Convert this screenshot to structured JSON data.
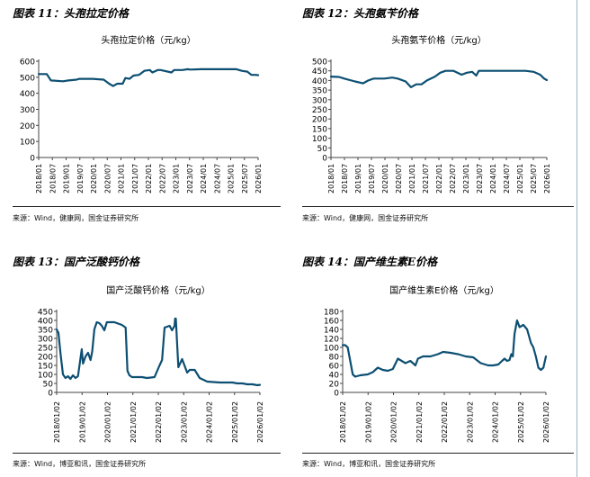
{
  "colors": {
    "line": "#0d4f72",
    "axis": "#444444",
    "divider": "#222222"
  },
  "chart_data": [
    {
      "type": "line",
      "figure_label": "图表 11：头孢拉定价格",
      "title": "头孢拉定价格（元/kg）",
      "source": "来源：Wind，健康网，国金证券研究所",
      "yticks": [
        0,
        100,
        200,
        300,
        400,
        500,
        600
      ],
      "ylim": [
        0,
        600
      ],
      "xticks": [
        "2018/01",
        "2018/07",
        "2019/01",
        "2019/07",
        "2020/01",
        "2020/07",
        "2021/01",
        "2021/07",
        "2022/01",
        "2022/07",
        "2023/01",
        "2023/07",
        "2024/01",
        "2024/07",
        "2025/01",
        "2025/07",
        "2026/01"
      ],
      "xlim": [
        2018.0,
        2026.1
      ],
      "series": [
        {
          "name": "头孢拉定价格",
          "x": [
            2018.0,
            2018.3,
            2018.45,
            2018.9,
            2019.1,
            2019.4,
            2019.5,
            2019.9,
            2020.0,
            2020.4,
            2020.6,
            2020.75,
            2020.9,
            2021.1,
            2021.2,
            2021.35,
            2021.5,
            2021.7,
            2021.9,
            2022.1,
            2022.2,
            2022.4,
            2022.5,
            2022.9,
            2023.0,
            2023.3,
            2023.5,
            2023.6,
            2024.0,
            2024.5,
            2025.0,
            2025.3,
            2025.5,
            2025.7,
            2025.85,
            2026.0,
            2026.1
          ],
          "y": [
            520,
            520,
            480,
            475,
            480,
            485,
            490,
            490,
            490,
            485,
            460,
            445,
            460,
            460,
            495,
            490,
            510,
            515,
            540,
            545,
            530,
            545,
            545,
            530,
            545,
            545,
            550,
            548,
            550,
            550,
            550,
            550,
            540,
            535,
            515,
            515,
            513
          ]
        }
      ]
    },
    {
      "type": "line",
      "figure_label": "图表 12：头孢氨苄价格",
      "title": "头孢氨苄价格（元/kg）",
      "source": "来源：Wind，健康网，国金证券研究所",
      "yticks": [
        0,
        50,
        100,
        150,
        200,
        250,
        300,
        350,
        400,
        450,
        500
      ],
      "ylim": [
        0,
        500
      ],
      "xticks": [
        "2018/01",
        "2018/07",
        "2019/01",
        "2019/07",
        "2020/01",
        "2020/07",
        "2021/01",
        "2021/07",
        "2022/01",
        "2022/07",
        "2023/01",
        "2023/07",
        "2024/01",
        "2024/07",
        "2025/01",
        "2025/07",
        "2026/01"
      ],
      "xlim": [
        2018.0,
        2026.1
      ],
      "series": [
        {
          "name": "头孢氨苄价格",
          "x": [
            2018.0,
            2018.3,
            2018.5,
            2018.9,
            2019.2,
            2019.4,
            2019.6,
            2020.0,
            2020.3,
            2020.5,
            2020.6,
            2020.8,
            2021.0,
            2021.2,
            2021.4,
            2021.6,
            2021.9,
            2022.1,
            2022.3,
            2022.6,
            2022.9,
            2023.1,
            2023.3,
            2023.45,
            2023.55,
            2024.0,
            2024.5,
            2025.0,
            2025.3,
            2025.6,
            2025.85,
            2026.0,
            2026.1
          ],
          "y": [
            420,
            418,
            410,
            395,
            385,
            400,
            410,
            410,
            415,
            410,
            405,
            395,
            365,
            380,
            380,
            400,
            420,
            440,
            450,
            450,
            430,
            440,
            445,
            425,
            450,
            450,
            450,
            450,
            450,
            445,
            430,
            410,
            402
          ]
        }
      ]
    },
    {
      "type": "line",
      "figure_label": "图表 13：国产泛酸钙价格",
      "title": "国产泛酸钙价格（元/kg）",
      "source": "来源：Wind，博亚和讯，国金证券研究所",
      "yticks": [
        0,
        50,
        100,
        150,
        200,
        250,
        300,
        350,
        400,
        450
      ],
      "ylim": [
        0,
        450
      ],
      "xticks": [
        "2018/01/02",
        "2019/01/02",
        "2020/01/02",
        "2021/01/02",
        "2022/01/02",
        "2023/01/02",
        "2024/01/02",
        "2025/01/02",
        "2026/01/02"
      ],
      "xlim": [
        2018.0,
        2026.1
      ],
      "series": [
        {
          "name": "国产泛酸钙价格",
          "x": [
            2018.0,
            2018.07,
            2018.15,
            2018.25,
            2018.35,
            2018.45,
            2018.55,
            2018.65,
            2018.75,
            2018.85,
            2019.0,
            2019.05,
            2019.15,
            2019.25,
            2019.35,
            2019.42,
            2019.5,
            2019.6,
            2019.7,
            2019.8,
            2019.9,
            2020.0,
            2020.3,
            2020.6,
            2020.75,
            2020.82,
            2020.9,
            2021.0,
            2021.4,
            2021.6,
            2021.9,
            2022.1,
            2022.2,
            2022.3,
            2022.5,
            2022.6,
            2022.7,
            2022.72,
            2022.75,
            2022.85,
            2023.0,
            2023.2,
            2023.3,
            2023.5,
            2023.7,
            2024.0,
            2024.5,
            2025.0,
            2025.2,
            2025.4,
            2025.6,
            2025.8,
            2026.0,
            2026.1
          ],
          "y": [
            350,
            330,
            220,
            100,
            80,
            90,
            75,
            95,
            80,
            90,
            240,
            160,
            200,
            220,
            180,
            230,
            350,
            390,
            385,
            370,
            345,
            390,
            390,
            375,
            360,
            120,
            95,
            85,
            85,
            80,
            85,
            150,
            180,
            360,
            370,
            345,
            370,
            410,
            410,
            140,
            185,
            110,
            125,
            125,
            80,
            60,
            55,
            55,
            50,
            50,
            45,
            45,
            40,
            42
          ]
        }
      ]
    },
    {
      "type": "line",
      "figure_label": "图表 14：国产维生素E价格",
      "title": "国产维生素E价格（元/kg）",
      "source": "来源：Wind，博亚和讯，国金证券研究所",
      "yticks": [
        0,
        20,
        40,
        60,
        80,
        100,
        120,
        140,
        160,
        180
      ],
      "ylim": [
        0,
        180
      ],
      "xticks": [
        "2018/01/02",
        "2019/01/02",
        "2020/01/02",
        "2021/01/02",
        "2022/01/02",
        "2023/01/02",
        "2024/01/02",
        "2025/01/02",
        "2026/01/02"
      ],
      "xlim": [
        2018.0,
        2026.1
      ],
      "series": [
        {
          "name": "国产维生素E价格",
          "x": [
            2018.0,
            2018.1,
            2018.2,
            2018.3,
            2018.4,
            2018.5,
            2018.7,
            2019.0,
            2019.2,
            2019.4,
            2019.6,
            2019.8,
            2020.0,
            2020.2,
            2020.35,
            2020.5,
            2020.7,
            2020.9,
            2021.0,
            2021.2,
            2021.5,
            2021.8,
            2022.0,
            2022.3,
            2022.6,
            2022.9,
            2023.2,
            2023.5,
            2023.8,
            2024.0,
            2024.2,
            2024.35,
            2024.45,
            2024.55,
            2024.65,
            2024.72,
            2024.78,
            2024.85,
            2024.95,
            2025.05,
            2025.2,
            2025.35,
            2025.5,
            2025.6,
            2025.7,
            2025.8,
            2025.9,
            2026.0,
            2026.1
          ],
          "y": [
            105,
            105,
            100,
            70,
            40,
            35,
            38,
            40,
            45,
            55,
            50,
            48,
            52,
            75,
            70,
            65,
            70,
            60,
            75,
            80,
            80,
            85,
            90,
            88,
            85,
            80,
            78,
            65,
            60,
            60,
            62,
            70,
            75,
            70,
            72,
            85,
            80,
            130,
            160,
            145,
            150,
            140,
            110,
            100,
            80,
            55,
            50,
            55,
            80
          ]
        }
      ]
    }
  ]
}
